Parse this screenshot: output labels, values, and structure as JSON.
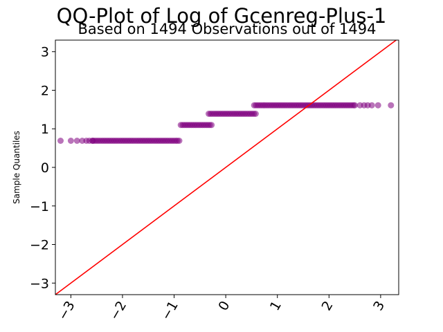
{
  "chart_data": {
    "type": "scatter",
    "title": "QQ-Plot of Log of Gcenreg-Plus-1",
    "subtitle": "Based on 1494 Observations out of 1494",
    "xlabel": "",
    "ylabel": "Sample Quantiles",
    "xlim": [
      -3.3,
      3.35
    ],
    "ylim": [
      -3.3,
      3.3
    ],
    "x_ticks": [
      -3,
      -2,
      -1,
      0,
      1,
      2,
      3
    ],
    "x_tick_labels": [
      "−3",
      "−2",
      "−1",
      "0",
      "1",
      "2",
      "3"
    ],
    "y_ticks": [
      -3,
      -2,
      -1,
      0,
      1,
      2,
      3
    ],
    "y_tick_labels": [
      "−3",
      "−2",
      "−1",
      "0",
      "1",
      "2",
      "3"
    ],
    "grid": false,
    "point_color": "#800080",
    "line_color": "#ff0000",
    "reference_line": {
      "slope": 1,
      "intercept": 0
    },
    "groups": [
      {
        "x_start": -3.2,
        "x_end": -0.87,
        "y": 0.69,
        "sparse_left": [
          -3.2,
          -3.0,
          -2.88,
          -2.78,
          -2.7,
          -2.64,
          -2.58
        ]
      },
      {
        "x_start": -0.87,
        "x_end": -0.27,
        "y": 1.1
      },
      {
        "x_start": -0.33,
        "x_end": 0.6,
        "y": 1.39
      },
      {
        "x_start": 0.55,
        "x_end": 3.2,
        "y": 1.61,
        "sparse_right": [
          2.5,
          2.6,
          2.68,
          2.75,
          2.83,
          2.95,
          3.2
        ]
      }
    ]
  }
}
